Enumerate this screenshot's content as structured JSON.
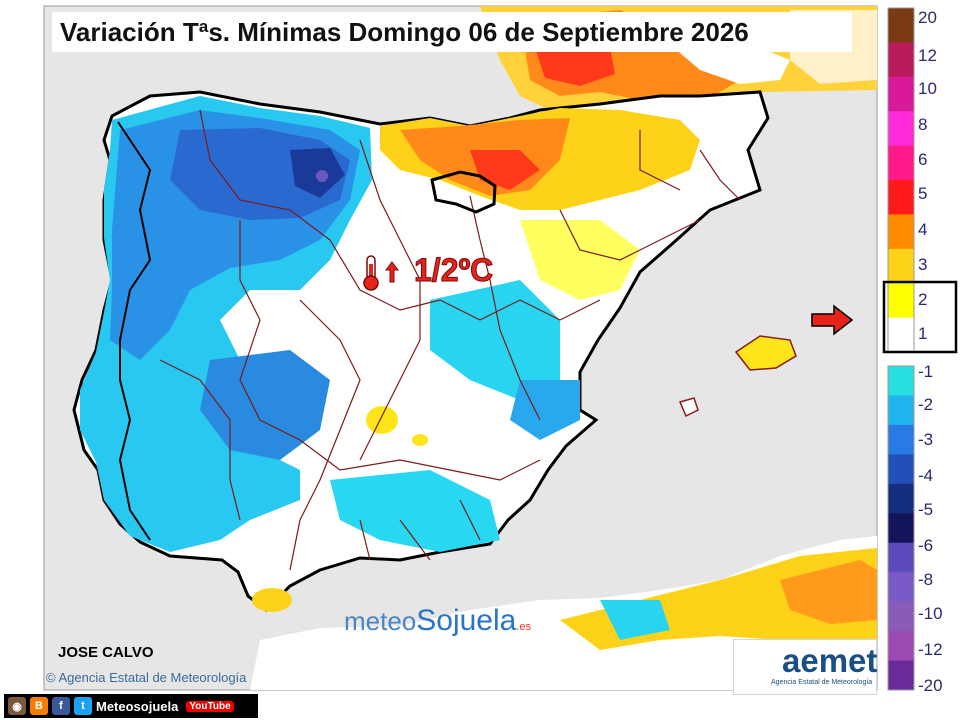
{
  "title": "Variación Tªs. Mínimas Domingo 06 de Septiembre 2026",
  "map_label": "1/2ºC",
  "author": "JOSE CALVO",
  "credit": "Agencia Estatal de Meteorología",
  "credit_symbol": "©",
  "social": {
    "handle": "Meteosojuela",
    "youtube": "YouTube"
  },
  "watermark": {
    "part1": "meteo",
    "part2": "Sojuela",
    "suffix": ".es"
  },
  "aemet": {
    "name": "aemet",
    "subtitle": "Agencia Estatal de Meteorología"
  },
  "legend": {
    "highlight": "1/2",
    "colors": [
      "#7a3a12",
      "#b81a5a",
      "#d81a9a",
      "#ff2ad8",
      "#ff1a8a",
      "#ff1a1a",
      "#ff8a00",
      "#ffd21a",
      "#ffff00",
      "#ffffff",
      "#28e0e0",
      "#22b4f0",
      "#2a7ae6",
      "#2050b8",
      "#142e80",
      "#14145a",
      "#5a4aba",
      "#7a5ac8",
      "#8a5ab8",
      "#9a4ab0",
      "#6a2a9a"
    ],
    "labels": [
      "20",
      "12",
      "10",
      "8",
      "6",
      "5",
      "4",
      "3",
      "2",
      "1",
      "-1",
      "-2",
      "-3",
      "-4",
      "-5",
      "-6",
      "-8",
      "-10",
      "-12",
      "-20"
    ]
  },
  "icons": [
    "thermometer-icon",
    "arrow-up-icon",
    "red-arrow-icon",
    "instagram-icon",
    "blogger-icon",
    "facebook-icon",
    "twitter-icon",
    "youtube-icon",
    "aemet-logo"
  ]
}
